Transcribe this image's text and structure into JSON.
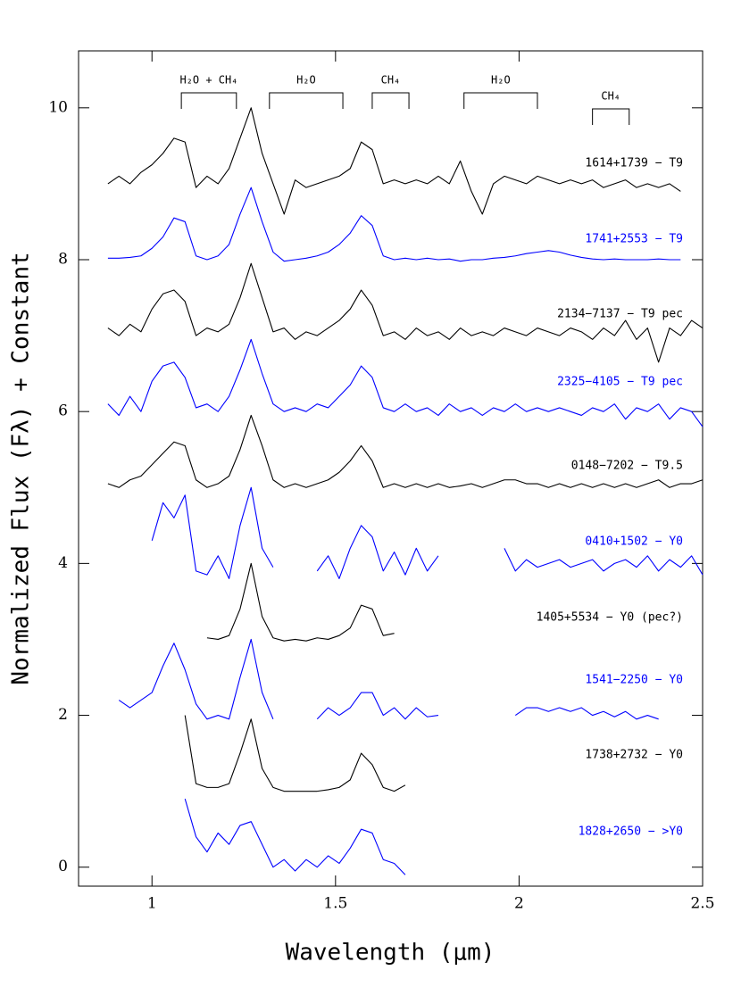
{
  "chart_data": {
    "type": "line",
    "xlabel": "Wavelength (μm)",
    "ylabel": "Normalized Flux (Fλ) + Constant",
    "xlim": [
      0.8,
      2.5
    ],
    "ylim": [
      -0.25,
      10.75
    ],
    "xticks": [
      1,
      1.5,
      2,
      2.5
    ],
    "yticks": [
      0,
      2,
      4,
      6,
      8,
      10
    ],
    "bands": [
      {
        "label": "H₂O + CH₄",
        "x": [
          1.08,
          1.23
        ]
      },
      {
        "label": "H₂O",
        "x": [
          1.32,
          1.52
        ]
      },
      {
        "label": "CH₄",
        "x": [
          1.6,
          1.7
        ]
      },
      {
        "label": "H₂O",
        "x": [
          1.85,
          2.05
        ]
      },
      {
        "label": "CH₄",
        "x": [
          2.2,
          2.3
        ]
      }
    ],
    "x": [
      0.88,
      0.91,
      0.94,
      0.97,
      1.0,
      1.03,
      1.06,
      1.09,
      1.12,
      1.15,
      1.18,
      1.21,
      1.24,
      1.27,
      1.3,
      1.33,
      1.36,
      1.39,
      1.42,
      1.45,
      1.48,
      1.51,
      1.54,
      1.57,
      1.6,
      1.63,
      1.66,
      1.69,
      1.72,
      1.75,
      1.78,
      1.81,
      1.84,
      1.87,
      1.9,
      1.93,
      1.96,
      1.99,
      2.02,
      2.05,
      2.08,
      2.11,
      2.14,
      2.17,
      2.2,
      2.23,
      2.26,
      2.29,
      2.32,
      2.35,
      2.38,
      2.41,
      2.44,
      2.47,
      2.5
    ],
    "series": [
      {
        "name": "1614+1739 − T9",
        "color": "#000000",
        "values": [
          9.0,
          9.1,
          9.0,
          9.15,
          9.25,
          9.4,
          9.6,
          9.55,
          8.95,
          9.1,
          9.0,
          9.2,
          9.6,
          10.0,
          9.4,
          9.0,
          8.6,
          9.05,
          8.95,
          9.0,
          9.05,
          9.1,
          9.2,
          9.55,
          9.45,
          9.0,
          9.05,
          9.0,
          9.05,
          9.0,
          9.1,
          9.0,
          9.3,
          8.9,
          8.6,
          9.0,
          9.1,
          9.05,
          9.0,
          9.1,
          9.05,
          9.0,
          9.05,
          9.0,
          9.05,
          8.95,
          9.0,
          9.05,
          8.95,
          9.0,
          8.95,
          9.0,
          8.9,
          null,
          null
        ]
      },
      {
        "name": "1741+2553 − T9",
        "color": "#0000ff",
        "values": [
          8.02,
          8.02,
          8.03,
          8.05,
          8.15,
          8.3,
          8.55,
          8.5,
          8.05,
          8.0,
          8.05,
          8.2,
          8.6,
          8.95,
          8.5,
          8.1,
          7.98,
          8.0,
          8.02,
          8.05,
          8.1,
          8.2,
          8.35,
          8.58,
          8.45,
          8.05,
          8.0,
          8.02,
          8.0,
          8.02,
          8.0,
          8.01,
          7.98,
          8.0,
          8.0,
          8.02,
          8.03,
          8.05,
          8.08,
          8.1,
          8.12,
          8.1,
          8.06,
          8.03,
          8.01,
          8.0,
          8.01,
          8.0,
          8.0,
          8.0,
          8.01,
          8.0,
          8.0,
          null,
          null
        ]
      },
      {
        "name": "2134−7137 − T9 pec",
        "color": "#000000",
        "values": [
          7.1,
          7.0,
          7.15,
          7.05,
          7.35,
          7.55,
          7.6,
          7.45,
          7.0,
          7.1,
          7.05,
          7.15,
          7.5,
          7.95,
          7.5,
          7.05,
          7.1,
          6.95,
          7.05,
          7.0,
          7.1,
          7.2,
          7.35,
          7.6,
          7.4,
          7.0,
          7.05,
          6.95,
          7.1,
          7.0,
          7.05,
          6.95,
          7.1,
          7.0,
          7.05,
          7.0,
          7.1,
          7.05,
          7.0,
          7.1,
          7.05,
          7.0,
          7.1,
          7.05,
          6.95,
          7.1,
          7.0,
          7.2,
          6.95,
          7.1,
          6.65,
          7.1,
          7.0,
          7.2,
          7.1
        ]
      },
      {
        "name": "2325−4105 − T9 pec",
        "color": "#0000ff",
        "values": [
          6.1,
          5.95,
          6.2,
          6.0,
          6.4,
          6.6,
          6.65,
          6.45,
          6.05,
          6.1,
          6.0,
          6.2,
          6.55,
          6.95,
          6.5,
          6.1,
          6.0,
          6.05,
          6.0,
          6.1,
          6.05,
          6.2,
          6.35,
          6.6,
          6.45,
          6.05,
          6.0,
          6.1,
          6.0,
          6.05,
          5.95,
          6.1,
          6.0,
          6.05,
          5.95,
          6.05,
          6.0,
          6.1,
          6.0,
          6.05,
          6.0,
          6.05,
          6.0,
          5.95,
          6.05,
          6.0,
          6.1,
          5.9,
          6.05,
          6.0,
          6.1,
          5.9,
          6.05,
          6.0,
          5.8
        ]
      },
      {
        "name": "0148−7202 − T9.5",
        "color": "#000000",
        "values": [
          5.05,
          5.0,
          5.1,
          5.15,
          5.3,
          5.45,
          5.6,
          5.55,
          5.1,
          5.0,
          5.05,
          5.15,
          5.5,
          5.95,
          5.55,
          5.1,
          5.0,
          5.05,
          5.0,
          5.05,
          5.1,
          5.2,
          5.35,
          5.55,
          5.35,
          5.0,
          5.05,
          5.0,
          5.05,
          5.0,
          5.05,
          5.0,
          5.02,
          5.05,
          5.0,
          5.05,
          5.1,
          5.1,
          5.05,
          5.05,
          5.0,
          5.05,
          5.0,
          5.05,
          5.0,
          5.05,
          5.0,
          5.05,
          5.0,
          5.05,
          5.1,
          5.0,
          5.05,
          5.05,
          5.1
        ]
      },
      {
        "name": "0410+1502 − Y0",
        "color": "#0000ff",
        "values": [
          null,
          null,
          null,
          null,
          4.3,
          4.8,
          4.6,
          4.9,
          3.9,
          3.85,
          4.1,
          3.8,
          4.5,
          5.0,
          4.2,
          3.95,
          null,
          null,
          null,
          3.9,
          4.1,
          3.8,
          4.2,
          4.5,
          4.35,
          3.9,
          4.15,
          3.85,
          4.2,
          3.9,
          4.1,
          null,
          null,
          null,
          null,
          null,
          4.2,
          3.9,
          4.05,
          3.95,
          4.0,
          4.05,
          3.95,
          4.0,
          4.05,
          3.9,
          4.0,
          4.05,
          3.95,
          4.1,
          3.9,
          4.05,
          3.95,
          4.1,
          3.85
        ]
      },
      {
        "name": "1405+5534 − Y0 (pec?)",
        "color": "#000000",
        "values": [
          null,
          null,
          null,
          null,
          null,
          null,
          null,
          null,
          null,
          3.02,
          3.0,
          3.05,
          3.4,
          4.0,
          3.3,
          3.02,
          2.98,
          3.0,
          2.98,
          3.02,
          3.0,
          3.05,
          3.15,
          3.45,
          3.4,
          3.05,
          3.08,
          null,
          null,
          null,
          null,
          null,
          null,
          null,
          null,
          null,
          null,
          null,
          null,
          null,
          null,
          null,
          null,
          null,
          null,
          null,
          null,
          null,
          null,
          null,
          null,
          null,
          null,
          null,
          null
        ]
      },
      {
        "name": "1541−2250 − Y0",
        "color": "#0000ff",
        "values": [
          null,
          2.2,
          2.1,
          2.2,
          2.3,
          2.65,
          2.95,
          2.6,
          2.15,
          1.95,
          2.0,
          1.95,
          2.5,
          3.0,
          2.3,
          1.95,
          null,
          null,
          null,
          1.95,
          2.1,
          2.0,
          2.1,
          2.3,
          2.3,
          2.0,
          2.1,
          1.95,
          2.1,
          1.98,
          2.0,
          null,
          null,
          null,
          null,
          null,
          null,
          2.0,
          2.1,
          2.1,
          2.05,
          2.1,
          2.05,
          2.1,
          2.0,
          2.05,
          1.98,
          2.05,
          1.95,
          2.0,
          1.95,
          null,
          null,
          null,
          null
        ]
      },
      {
        "name": "1738+2732 − Y0",
        "color": "#000000",
        "values": [
          null,
          null,
          null,
          null,
          null,
          null,
          null,
          2.0,
          1.1,
          1.05,
          1.05,
          1.1,
          1.5,
          1.95,
          1.3,
          1.05,
          1.0,
          1.0,
          1.0,
          1.0,
          1.02,
          1.05,
          1.15,
          1.5,
          1.35,
          1.05,
          1.0,
          1.08,
          null,
          null,
          null,
          null,
          null,
          null,
          null,
          null,
          null,
          null,
          null,
          null,
          null,
          null,
          null,
          null,
          null,
          null,
          null,
          null,
          null,
          null,
          null,
          null,
          null,
          null,
          null
        ]
      },
      {
        "name": "1828+2650 − >Y0",
        "color": "#0000ff",
        "values": [
          null,
          null,
          null,
          null,
          null,
          null,
          null,
          0.9,
          0.4,
          0.2,
          0.45,
          0.3,
          0.55,
          0.6,
          0.3,
          0.0,
          0.1,
          -0.05,
          0.1,
          0.0,
          0.15,
          0.05,
          0.25,
          0.5,
          0.45,
          0.1,
          0.05,
          -0.1,
          null,
          null,
          null,
          null,
          null,
          null,
          null,
          null,
          null,
          null,
          null,
          null,
          null,
          null,
          null,
          null,
          null,
          null,
          null,
          null,
          null,
          null,
          null,
          null,
          null,
          null,
          null
        ]
      }
    ]
  }
}
